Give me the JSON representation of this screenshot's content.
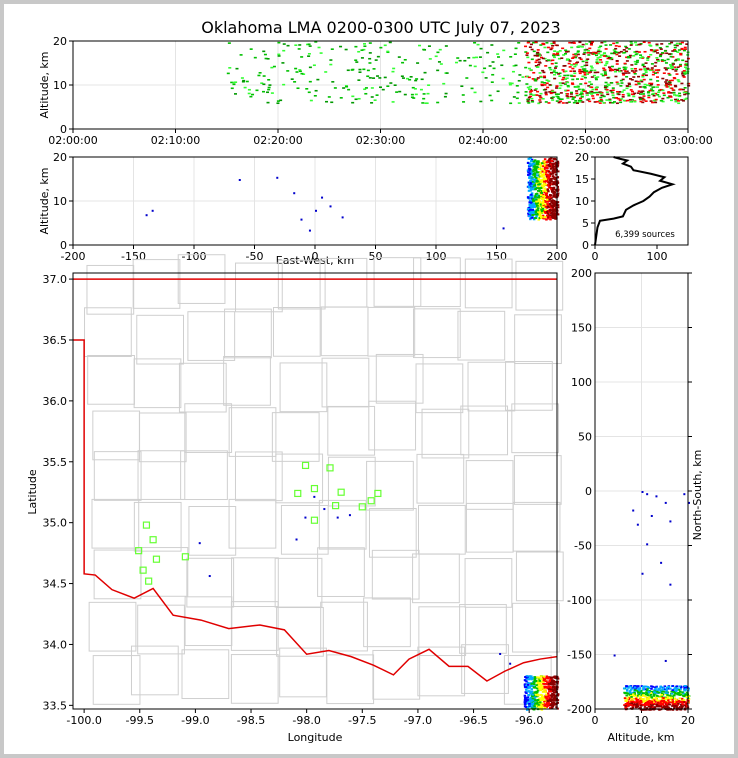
{
  "chart_data": {
    "title": "Oklahoma LMA 0200-0300 UTC July 07, 2023",
    "type": "scatter",
    "panels": {
      "time_altitude": {
        "type": "scatter",
        "ylabel": "Altitude, km",
        "xlim": [
          "02:00:00",
          "03:00:00"
        ],
        "ylim": [
          0,
          20
        ],
        "xticks": [
          "02:00:00",
          "02:10:00",
          "02:20:00",
          "02:30:00",
          "02:40:00",
          "02:50:00",
          "03:00:00"
        ],
        "yticks": [
          0,
          10,
          20
        ],
        "grid": true,
        "clusters": [
          {
            "x_start": "02:15:00",
            "x_end": "02:44:00",
            "y_range": [
              6,
              20
            ],
            "density": "sparse",
            "colors": [
              "#00c000",
              "#33ff33",
              "#009900"
            ]
          },
          {
            "x_start": "02:44:00",
            "x_end": "03:00:00",
            "y_range": [
              6,
              20
            ],
            "density": "dense",
            "colors": [
              "#00c000",
              "#33ff33",
              "#ff0000",
              "#8b0000"
            ]
          }
        ]
      },
      "eastwest_altitude": {
        "type": "scatter",
        "xlabel": "East-West, km",
        "ylabel": "Altitude, km",
        "xlim": [
          -200,
          200
        ],
        "ylim": [
          0,
          20
        ],
        "xticks": [
          -200,
          -150,
          -100,
          -50,
          0,
          50,
          100,
          150,
          200
        ],
        "yticks": [
          0,
          10,
          20
        ],
        "grid": true,
        "points": [
          {
            "x": -135,
            "y": 8
          },
          {
            "x": -140,
            "y": 7
          },
          {
            "x": -63,
            "y": 15
          },
          {
            "x": -32,
            "y": 15.5
          },
          {
            "x": -18,
            "y": 12
          },
          {
            "x": -12,
            "y": 6
          },
          {
            "x": 0,
            "y": 8
          },
          {
            "x": 5,
            "y": 11
          },
          {
            "x": 12,
            "y": 9
          },
          {
            "x": 22,
            "y": 6.5
          },
          {
            "x": -5,
            "y": 3.5
          },
          {
            "x": 155,
            "y": 4
          }
        ],
        "dense_region": {
          "x_range": [
            175,
            200
          ],
          "y_range": [
            6,
            20
          ],
          "colors": [
            "#0000ff",
            "#00aaff",
            "#00c000",
            "#ffff00",
            "#ff0000",
            "#8b0000"
          ]
        }
      },
      "altitude_histogram": {
        "type": "line",
        "xlim": [
          0,
          150
        ],
        "ylim": [
          0,
          20
        ],
        "xticks": [
          0,
          100
        ],
        "yticks": [
          0,
          5,
          10,
          15,
          20
        ],
        "annotation": "6,399 sources",
        "profile": [
          {
            "x": 0,
            "y": 0
          },
          {
            "x": 2,
            "y": 2
          },
          {
            "x": 4,
            "y": 4
          },
          {
            "x": 8,
            "y": 5.5
          },
          {
            "x": 30,
            "y": 6
          },
          {
            "x": 45,
            "y": 6.5
          },
          {
            "x": 50,
            "y": 8
          },
          {
            "x": 62,
            "y": 9
          },
          {
            "x": 78,
            "y": 10
          },
          {
            "x": 88,
            "y": 11
          },
          {
            "x": 95,
            "y": 12
          },
          {
            "x": 108,
            "y": 13
          },
          {
            "x": 125,
            "y": 13.8
          },
          {
            "x": 105,
            "y": 14.6
          },
          {
            "x": 112,
            "y": 15.4
          },
          {
            "x": 90,
            "y": 16.2
          },
          {
            "x": 62,
            "y": 17
          },
          {
            "x": 58,
            "y": 17.8
          },
          {
            "x": 45,
            "y": 18.5
          },
          {
            "x": 52,
            "y": 19.2
          },
          {
            "x": 40,
            "y": 19.6
          },
          {
            "x": 30,
            "y": 20
          }
        ]
      },
      "map": {
        "type": "scatter",
        "xlabel": "Longitude",
        "ylabel": "Latitude",
        "xlim": [
          -100.1,
          -95.75
        ],
        "ylim": [
          33.47,
          37.05
        ],
        "xticks": [
          -100.0,
          -99.5,
          -99.0,
          -98.5,
          -98.0,
          -97.5,
          -97.0,
          -96.5,
          -96.0
        ],
        "yticks": [
          33.5,
          34.0,
          34.5,
          35.0,
          35.5,
          36.0,
          36.5,
          37.0
        ],
        "stations": [
          {
            "lon": -98.01,
            "lat": 35.47
          },
          {
            "lon": -97.79,
            "lat": 35.45
          },
          {
            "lon": -97.93,
            "lat": 35.28
          },
          {
            "lon": -98.08,
            "lat": 35.24
          },
          {
            "lon": -97.69,
            "lat": 35.25
          },
          {
            "lon": -97.36,
            "lat": 35.24
          },
          {
            "lon": -97.42,
            "lat": 35.18
          },
          {
            "lon": -97.74,
            "lat": 35.14
          },
          {
            "lon": -97.5,
            "lat": 35.13
          },
          {
            "lon": -97.93,
            "lat": 35.02
          },
          {
            "lon": -99.44,
            "lat": 34.98
          },
          {
            "lon": -99.38,
            "lat": 34.86
          },
          {
            "lon": -99.51,
            "lat": 34.77
          },
          {
            "lon": -99.09,
            "lat": 34.72
          },
          {
            "lon": -99.35,
            "lat": 34.7
          },
          {
            "lon": -99.47,
            "lat": 34.61
          },
          {
            "lon": -99.42,
            "lat": 34.52
          }
        ],
        "sources": [
          {
            "lon": -97.94,
            "lat": 35.22
          },
          {
            "lon": -98.02,
            "lat": 35.05
          },
          {
            "lon": -97.73,
            "lat": 35.05
          },
          {
            "lon": -97.62,
            "lat": 35.07
          },
          {
            "lon": -97.85,
            "lat": 35.12
          },
          {
            "lon": -98.97,
            "lat": 34.84
          },
          {
            "lon": -98.88,
            "lat": 34.57
          },
          {
            "lon": -98.1,
            "lat": 34.87
          },
          {
            "lon": -96.27,
            "lat": 33.93
          },
          {
            "lon": -96.18,
            "lat": 33.85
          }
        ],
        "dense_region": {
          "lon_range": [
            -96.05,
            -95.75
          ],
          "lat_range": [
            33.47,
            33.75
          ],
          "colors": [
            "#0000ff",
            "#00aaff",
            "#00c000",
            "#ffff00",
            "#ff0000",
            "#8b0000"
          ]
        }
      },
      "altitude_northsouth": {
        "type": "scatter",
        "xlabel": "Altitude, km",
        "ylabel": "North-South, km",
        "xlim": [
          0,
          20
        ],
        "ylim": [
          -200,
          200
        ],
        "xticks": [
          0,
          10,
          20
        ],
        "yticks": [
          -200,
          -150,
          -100,
          -50,
          0,
          50,
          100,
          150,
          200
        ],
        "grid": true,
        "points": [
          {
            "x": 10,
            "y": 0
          },
          {
            "x": 11,
            "y": -2
          },
          {
            "x": 13,
            "y": -4
          },
          {
            "x": 15,
            "y": -10
          },
          {
            "x": 8,
            "y": -17
          },
          {
            "x": 9,
            "y": -30
          },
          {
            "x": 12,
            "y": -22
          },
          {
            "x": 16,
            "y": -27
          },
          {
            "x": 11,
            "y": -48
          },
          {
            "x": 14,
            "y": -65
          },
          {
            "x": 10,
            "y": -75
          },
          {
            "x": 16,
            "y": -85
          },
          {
            "x": 15,
            "y": -155
          },
          {
            "x": 4,
            "y": -150
          },
          {
            "x": 20,
            "y": -10
          },
          {
            "x": 19,
            "y": -2
          }
        ],
        "dense_region": {
          "x_range": [
            6,
            20
          ],
          "y_range": [
            -200,
            -178
          ],
          "colors": [
            "#0000ff",
            "#00aaff",
            "#00c000",
            "#ffff00",
            "#ff0000",
            "#8b0000"
          ]
        }
      }
    }
  }
}
